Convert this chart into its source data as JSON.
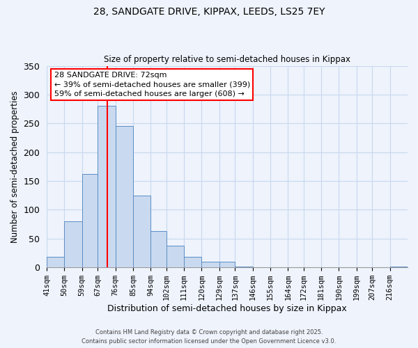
{
  "title": "28, SANDGATE DRIVE, KIPPAX, LEEDS, LS25 7EY",
  "subtitle": "Size of property relative to semi-detached houses in Kippax",
  "xlabel": "Distribution of semi-detached houses by size in Kippax",
  "ylabel": "Number of semi-detached properties",
  "bin_labels": [
    "41sqm",
    "50sqm",
    "59sqm",
    "67sqm",
    "76sqm",
    "85sqm",
    "94sqm",
    "102sqm",
    "111sqm",
    "120sqm",
    "129sqm",
    "137sqm",
    "146sqm",
    "155sqm",
    "164sqm",
    "172sqm",
    "181sqm",
    "190sqm",
    "199sqm",
    "207sqm",
    "216sqm"
  ],
  "bar_heights": [
    18,
    80,
    162,
    280,
    245,
    125,
    63,
    38,
    18,
    10,
    10,
    2,
    0,
    0,
    0,
    0,
    0,
    0,
    0,
    0,
    2
  ],
  "bar_color": "#c9d9f0",
  "bar_edge_color": "#5b8ec4",
  "vline_color": "red",
  "ylim": [
    0,
    350
  ],
  "yticks": [
    0,
    50,
    100,
    150,
    200,
    250,
    300,
    350
  ],
  "annotation_line1": "28 SANDGATE DRIVE: 72sqm",
  "annotation_line2": "← 39% of semi-detached houses are smaller (399)",
  "annotation_line3": "59% of semi-detached houses are larger (608) →",
  "footer1": "Contains HM Land Registry data © Crown copyright and database right 2025.",
  "footer2": "Contains public sector information licensed under the Open Government Licence v3.0.",
  "background_color": "#eef3fc",
  "grid_color": "#c8d8ee"
}
